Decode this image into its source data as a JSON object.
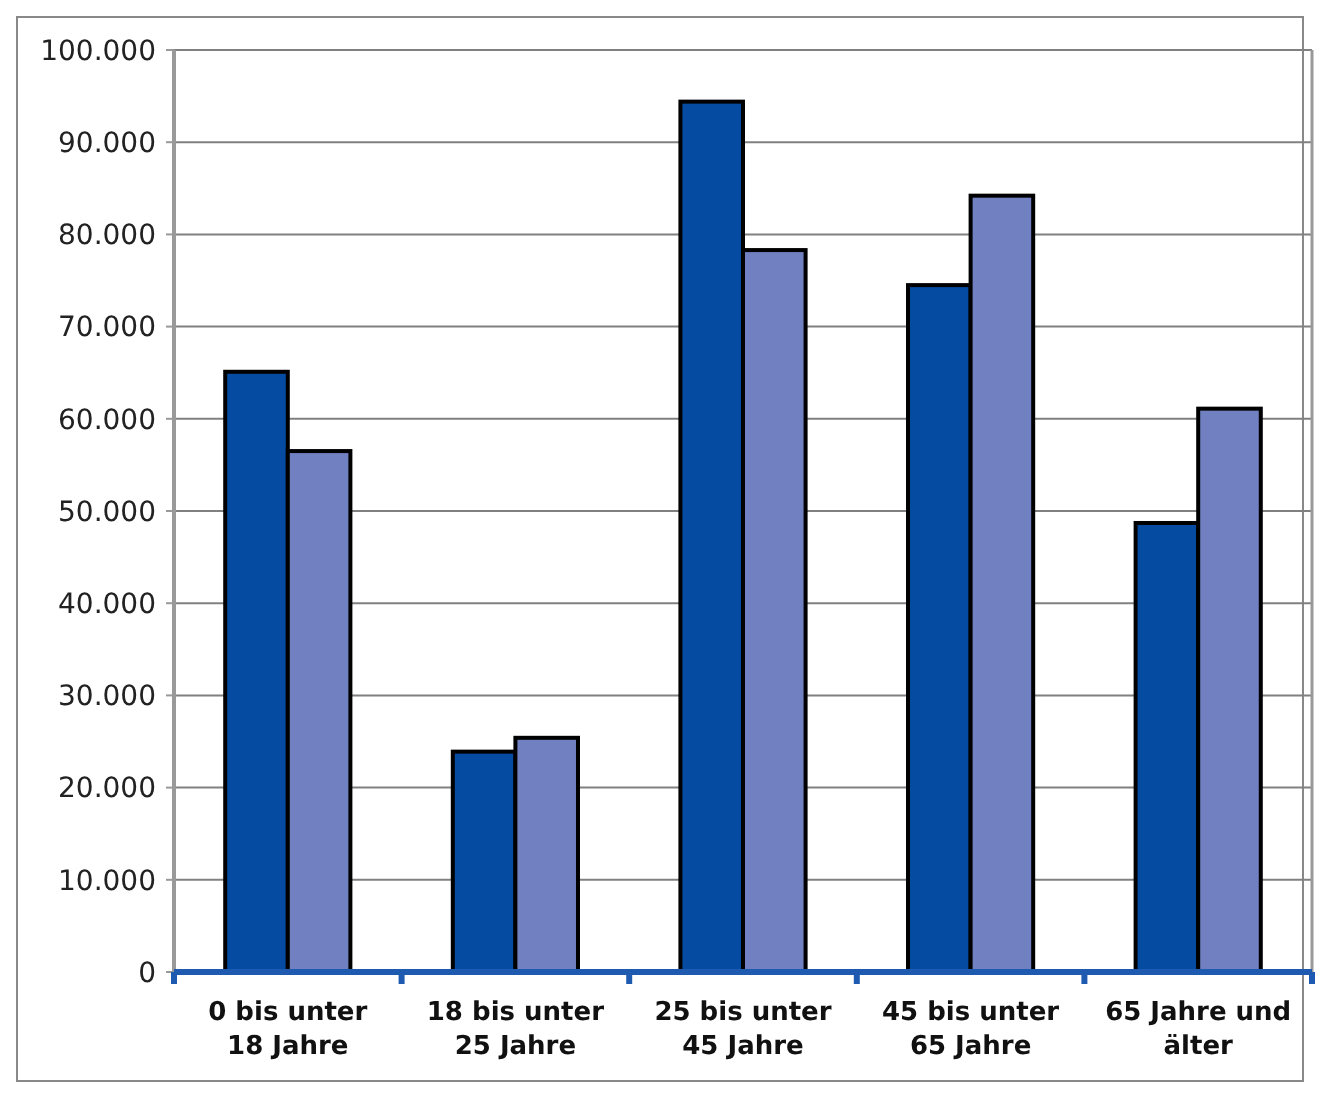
{
  "chart_data": {
    "type": "bar",
    "categories": [
      "0 bis unter 18 Jahre",
      "18 bis unter 25 Jahre",
      "25 bis unter 45 Jahre",
      "45 bis unter 65 Jahre",
      "65 Jahre und älter"
    ],
    "series": [
      {
        "color": "#054ba1",
        "values": [
          65100,
          23900,
          94400,
          74500,
          48700
        ]
      },
      {
        "color": "#7080c0",
        "values": [
          56500,
          25400,
          78300,
          84200,
          61100
        ]
      }
    ],
    "ylim": [
      0,
      100000
    ],
    "yticks": [
      {
        "value": 0,
        "label": "0"
      },
      {
        "value": 10000,
        "label": "10.000"
      },
      {
        "value": 20000,
        "label": "20.000"
      },
      {
        "value": 30000,
        "label": "30.000"
      },
      {
        "value": 40000,
        "label": "40.000"
      },
      {
        "value": 50000,
        "label": "50.000"
      },
      {
        "value": 60000,
        "label": "60.000"
      },
      {
        "value": 70000,
        "label": "70.000"
      },
      {
        "value": 80000,
        "label": "80.000"
      },
      {
        "value": 90000,
        "label": "90.000"
      },
      {
        "value": 100000,
        "label": "100.000"
      }
    ],
    "grid": "y"
  }
}
